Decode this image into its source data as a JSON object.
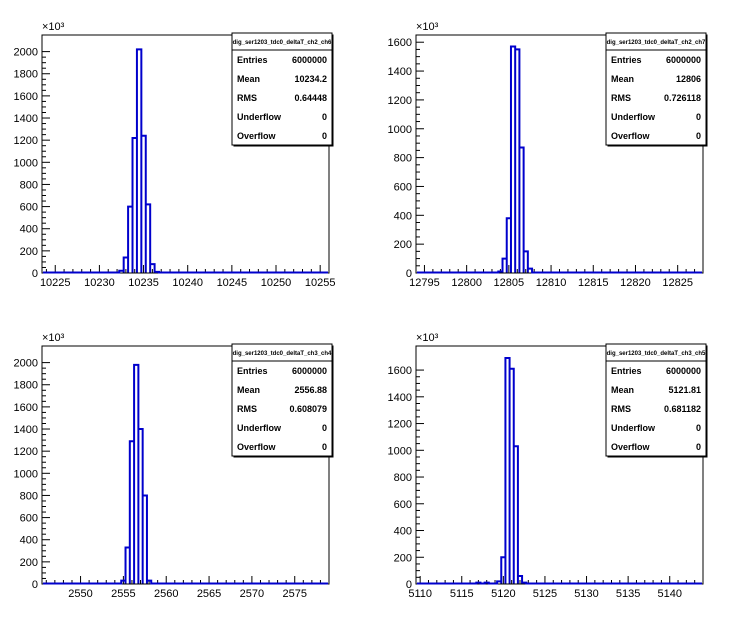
{
  "chart_data": [
    {
      "type": "bar",
      "name": "dig_ser1203_tdc0_deltaT_ch2_ch6",
      "ylabel_multiplier": "×10³",
      "xlim": [
        10223.5,
        10256
      ],
      "ylim": [
        0,
        2150
      ],
      "xticks": [
        10225,
        10230,
        10235,
        10240,
        10245,
        10250,
        10255
      ],
      "yticks": [
        0,
        200,
        400,
        600,
        800,
        1000,
        1200,
        1400,
        1600,
        1800,
        2000
      ],
      "bin_width": 0.5,
      "bins": [
        {
          "x": 10232.5,
          "y": 20
        },
        {
          "x": 10233.0,
          "y": 140
        },
        {
          "x": 10233.5,
          "y": 600
        },
        {
          "x": 10234.0,
          "y": 1220
        },
        {
          "x": 10234.5,
          "y": 2020
        },
        {
          "x": 10235.0,
          "y": 1240
        },
        {
          "x": 10235.5,
          "y": 620
        },
        {
          "x": 10236.0,
          "y": 80
        },
        {
          "x": 10236.5,
          "y": 10
        }
      ],
      "stats": {
        "title": "dig_ser1203_tdc0_deltaT_ch2_ch6",
        "rows": [
          [
            "Entries",
            "6000000"
          ],
          [
            "Mean",
            "10234.2"
          ],
          [
            "RMS",
            "0.64448"
          ],
          [
            "Underflow",
            "0"
          ],
          [
            "Overflow",
            "0"
          ]
        ]
      }
    },
    {
      "type": "bar",
      "name": "dig_ser1203_tdc0_deltaT_ch2_ch7",
      "ylabel_multiplier": "×10³",
      "xlim": [
        12794,
        12828
      ],
      "ylim": [
        0,
        1650
      ],
      "xticks": [
        12795,
        12800,
        12805,
        12810,
        12815,
        12820,
        12825
      ],
      "yticks": [
        0,
        200,
        400,
        600,
        800,
        1000,
        1200,
        1400,
        1600
      ],
      "bin_width": 0.5,
      "bins": [
        {
          "x": 12804.0,
          "y": 10
        },
        {
          "x": 12804.5,
          "y": 100
        },
        {
          "x": 12805.0,
          "y": 380
        },
        {
          "x": 12805.5,
          "y": 1570
        },
        {
          "x": 12806.0,
          "y": 1550
        },
        {
          "x": 12806.5,
          "y": 870
        },
        {
          "x": 12807.0,
          "y": 150
        },
        {
          "x": 12807.5,
          "y": 30
        }
      ],
      "stats": {
        "title": "dig_ser1203_tdc0_deltaT_ch2_ch7",
        "rows": [
          [
            "Entries",
            "6000000"
          ],
          [
            "Mean",
            "12806"
          ],
          [
            "RMS",
            "0.726118"
          ],
          [
            "Underflow",
            "0"
          ],
          [
            "Overflow",
            "0"
          ]
        ]
      }
    },
    {
      "type": "bar",
      "name": "dig_ser1203_tdc0_deltaT_ch3_ch4",
      "ylabel_multiplier": "×10³",
      "xlim": [
        2545.5,
        2579
      ],
      "ylim": [
        0,
        2150
      ],
      "xticks": [
        2550,
        2555,
        2560,
        2565,
        2570,
        2575
      ],
      "yticks": [
        0,
        200,
        400,
        600,
        800,
        1000,
        1200,
        1400,
        1600,
        1800,
        2000
      ],
      "bin_width": 0.5,
      "bins": [
        {
          "x": 2555.0,
          "y": 30
        },
        {
          "x": 2555.5,
          "y": 330
        },
        {
          "x": 2556.0,
          "y": 1290
        },
        {
          "x": 2556.5,
          "y": 1980
        },
        {
          "x": 2557.0,
          "y": 1400
        },
        {
          "x": 2557.5,
          "y": 800
        },
        {
          "x": 2558.0,
          "y": 30
        }
      ],
      "stats": {
        "title": "dig_ser1203_tdc0_deltaT_ch3_ch4",
        "rows": [
          [
            "Entries",
            "6000000"
          ],
          [
            "Mean",
            "2556.88"
          ],
          [
            "RMS",
            "0.608079"
          ],
          [
            "Underflow",
            "0"
          ],
          [
            "Overflow",
            "0"
          ]
        ]
      }
    },
    {
      "type": "bar",
      "name": "dig_ser1203_tdc0_deltaT_ch3_ch5",
      "ylabel_multiplier": "×10³",
      "xlim": [
        5109.5,
        5144
      ],
      "ylim": [
        0,
        1780
      ],
      "xticks": [
        5110,
        5115,
        5120,
        5125,
        5130,
        5135,
        5140
      ],
      "yticks": [
        0,
        200,
        400,
        600,
        800,
        1000,
        1200,
        1400,
        1600
      ],
      "bin_width": 0.5,
      "bins": [
        {
          "x": 5117.0,
          "y": 10
        },
        {
          "x": 5118.0,
          "y": 10
        },
        {
          "x": 5119.5,
          "y": 20
        },
        {
          "x": 5120.0,
          "y": 200
        },
        {
          "x": 5120.5,
          "y": 1690
        },
        {
          "x": 5121.0,
          "y": 1610
        },
        {
          "x": 5121.5,
          "y": 1030
        },
        {
          "x": 5122.0,
          "y": 60
        },
        {
          "x": 5122.5,
          "y": 10
        }
      ],
      "stats": {
        "title": "dig_ser1203_tdc0_deltaT_ch3_ch5",
        "rows": [
          [
            "Entries",
            "6000000"
          ],
          [
            "Mean",
            "5121.81"
          ],
          [
            "RMS",
            "0.681182"
          ],
          [
            "Underflow",
            "0"
          ],
          [
            "Overflow",
            "0"
          ]
        ]
      }
    }
  ]
}
